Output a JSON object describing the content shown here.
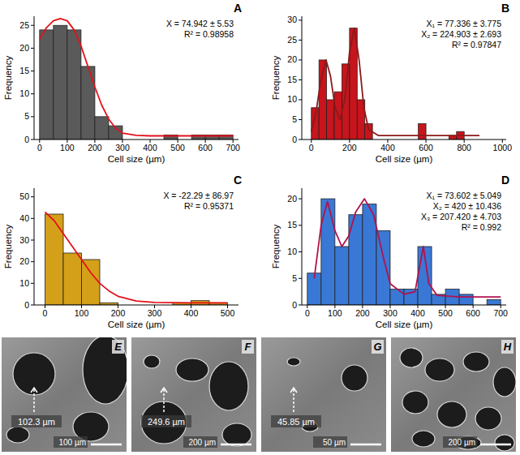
{
  "chart_data": [
    {
      "type": "histogram",
      "title": "A",
      "x_label": "Cell size (µm)",
      "y_label": "Frequency",
      "bins": [
        0,
        50,
        100,
        150,
        200,
        250,
        300,
        350,
        400,
        450,
        500,
        550,
        600,
        650,
        700
      ],
      "values": [
        24,
        25,
        24,
        16,
        5,
        3,
        0,
        0,
        0,
        1,
        0,
        1,
        1,
        1
      ],
      "color": "#5a5a5a",
      "series": [
        {
          "type": "line",
          "color": "#e3121b",
          "x": [
            0,
            25,
            50,
            75,
            100,
            125,
            150,
            175,
            200,
            225,
            250,
            275,
            300,
            350,
            400,
            500,
            600,
            700
          ],
          "values": [
            22,
            24.5,
            26,
            26.5,
            26,
            24,
            20.5,
            16,
            11.5,
            7.5,
            4.5,
            2.5,
            1.4,
            0.9,
            0.8,
            0.8,
            0.8,
            0.8
          ]
        }
      ],
      "annotations": [
        "X = 74.942 ± 5.53",
        "R² = 0.98958"
      ],
      "xlim": [
        -20,
        720
      ],
      "xticks": [
        0,
        100,
        200,
        300,
        400,
        500,
        600,
        700
      ],
      "ylim": [
        0,
        27
      ],
      "yticks": [
        0,
        5,
        10,
        15,
        20,
        25
      ]
    },
    {
      "type": "histogram",
      "title": "B",
      "x_label": "Cell size (µm)",
      "y_label": "Frequency",
      "bins": [
        0,
        40,
        80,
        120,
        160,
        200,
        240,
        280,
        320,
        360,
        400,
        440,
        480,
        520,
        560,
        600,
        640,
        680,
        720,
        760,
        800
      ],
      "values": [
        8,
        20,
        10,
        12,
        19,
        28,
        10,
        4,
        0,
        0,
        0,
        0,
        0,
        0,
        4,
        0,
        0,
        0,
        1,
        2
      ],
      "color": "#c8141c",
      "series": [
        {
          "type": "line",
          "color": "#8c1a1a",
          "x": [
            0,
            25,
            50,
            77,
            100,
            125,
            150,
            175,
            200,
            225,
            250,
            275,
            300,
            350,
            500,
            700,
            880
          ],
          "values": [
            2,
            7,
            15,
            20,
            16,
            8,
            5,
            10,
            22,
            28,
            20,
            8,
            2.5,
            1,
            1,
            1,
            1
          ]
        }
      ],
      "annotations": [
        "X₁ = 77.336 ± 3.775",
        "X₂ = 224.903 ± 2.693",
        "R² = 0.97847"
      ],
      "xlim": [
        -50,
        1020
      ],
      "xticks": [
        0,
        200,
        400,
        600,
        800,
        1000
      ],
      "ylim": [
        0,
        31
      ],
      "yticks": [
        0,
        5,
        10,
        15,
        20,
        25,
        30
      ]
    },
    {
      "type": "histogram",
      "title": "C",
      "x_label": "Cell size (µm)",
      "y_label": "Frequency",
      "bins": [
        0,
        50,
        100,
        150,
        200,
        250,
        300,
        350,
        400,
        450,
        500
      ],
      "values": [
        42,
        24,
        21,
        1,
        0,
        0,
        0,
        1,
        2,
        1
      ],
      "color": "#d4a019",
      "series": [
        {
          "type": "line",
          "color": "#e3121b",
          "x": [
            0,
            25,
            50,
            75,
            100,
            125,
            150,
            175,
            200,
            250,
            300,
            400,
            500
          ],
          "values": [
            43,
            39,
            33,
            27,
            21,
            15,
            10,
            6.5,
            4,
            1.8,
            1.2,
            1,
            1
          ]
        }
      ],
      "annotations": [
        "X = -22.29 ± 86.97",
        "R² = 0.95371"
      ],
      "xlim": [
        -30,
        530
      ],
      "xticks": [
        0,
        100,
        200,
        300,
        400,
        500
      ],
      "ylim": [
        0,
        54
      ],
      "yticks": [
        0,
        10,
        20,
        30,
        40,
        50
      ]
    },
    {
      "type": "histogram",
      "title": "D",
      "x_label": "Cell size (µm)",
      "y_label": "Frequency",
      "bins": [
        0,
        50,
        100,
        150,
        200,
        250,
        300,
        350,
        400,
        450,
        500,
        550,
        600,
        650,
        700
      ],
      "values": [
        6,
        20,
        11,
        17,
        19,
        14,
        3,
        3,
        11,
        2,
        3,
        2,
        0,
        1
      ],
      "color": "#3a78d6",
      "series": [
        {
          "type": "line",
          "color": "#b0124e",
          "x": [
            25,
            50,
            73,
            100,
            125,
            150,
            175,
            207,
            240,
            275,
            300,
            350,
            390,
            420,
            440,
            470,
            550,
            700
          ],
          "values": [
            5,
            15,
            19.5,
            14,
            11,
            13,
            17.5,
            20,
            17,
            9,
            4,
            2,
            2.5,
            11,
            4,
            1.8,
            1.5,
            1.5
          ]
        }
      ],
      "annotations": [
        "X₁ = 73.602 ± 5.049",
        "X₂ = 420 ± 10.436",
        "X₃ = 207.420 ± 4.703",
        "R² = 0.992"
      ],
      "xlim": [
        -20,
        720
      ],
      "xticks": [
        0,
        100,
        200,
        300,
        400,
        500,
        600,
        700
      ],
      "ylim": [
        0,
        22
      ],
      "yticks": [
        0,
        5,
        10,
        15,
        20
      ]
    }
  ],
  "images": [
    {
      "title": "E",
      "measure": "102.3 µm",
      "scale_bar": "100 µm"
    },
    {
      "title": "F",
      "measure": "249.6 µm",
      "scale_bar": "200 µm"
    },
    {
      "title": "G",
      "measure": "45.85 µm",
      "scale_bar": "50 µm"
    },
    {
      "title": "H",
      "scale_bar": "200 µm"
    }
  ]
}
